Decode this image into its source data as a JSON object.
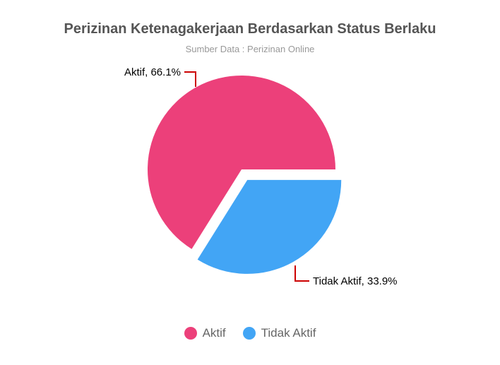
{
  "chart_data": {
    "type": "pie",
    "title": "Perizinan Ketenagakerjaan Berdasarkan Status Berlaku",
    "subtitle": "Sumber Data : Perizinan Online",
    "slices": [
      {
        "name": "Aktif",
        "value": 66.1,
        "label": "Aktif, 66.1%",
        "color": "#EC407A",
        "exploded": false
      },
      {
        "name": "Tidak Aktif",
        "value": 33.9,
        "label": "Tidak Aktif, 33.9%",
        "color": "#42A5F5",
        "exploded": true
      }
    ],
    "legend": {
      "position": "bottom",
      "items": [
        "Aktif",
        "Tidak Aktif"
      ]
    },
    "connector_color": "#cc0000"
  }
}
